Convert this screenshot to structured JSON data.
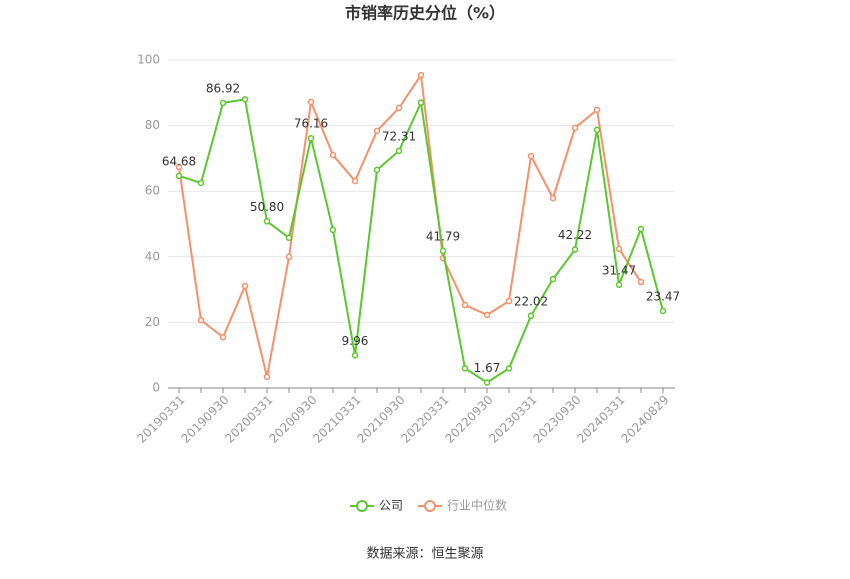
{
  "chart_data": {
    "type": "line",
    "title": "市销率历史分位（%）",
    "source": "数据来源：恒生聚源",
    "categories": [
      "20190331",
      null,
      "20190930",
      null,
      "20200331",
      null,
      "20200930",
      null,
      "20210331",
      null,
      "20210930",
      null,
      "20220331",
      null,
      "20220930",
      null,
      "20230331",
      null,
      "20230930",
      null,
      "20240331",
      null,
      "20240829"
    ],
    "series": [
      {
        "name": "公司",
        "color": "#5cc72e",
        "values": [
          64.68,
          62.5,
          86.92,
          88,
          50.8,
          45.8,
          76.16,
          48.2,
          9.96,
          66.5,
          72.31,
          87,
          41.79,
          6,
          1.67,
          6,
          22.02,
          33.2,
          42.22,
          78.7,
          31.47,
          48.5,
          23.47
        ],
        "value_labels": [
          "64.68",
          null,
          "86.92",
          null,
          "50.80",
          null,
          "76.16",
          null,
          "9.96",
          null,
          "72.31",
          null,
          "41.79",
          null,
          "1.67",
          null,
          "22.02",
          null,
          "42.22",
          null,
          "31.47",
          null,
          "23.47"
        ]
      },
      {
        "name": "行业中位数",
        "color": "#f4916a",
        "values": [
          67.4,
          20.7,
          15.5,
          31.1,
          3.4,
          40,
          87.2,
          71,
          63.1,
          78.4,
          85.4,
          95.4,
          39.6,
          25.3,
          22.3,
          26.5,
          70.7,
          57.9,
          79.3,
          84.8,
          42.4,
          32.3,
          null
        ]
      }
    ],
    "ylim": [
      0,
      100
    ],
    "yticks": [
      0,
      20,
      40,
      60,
      80,
      100
    ],
    "grid": true,
    "legend": "bottom"
  }
}
